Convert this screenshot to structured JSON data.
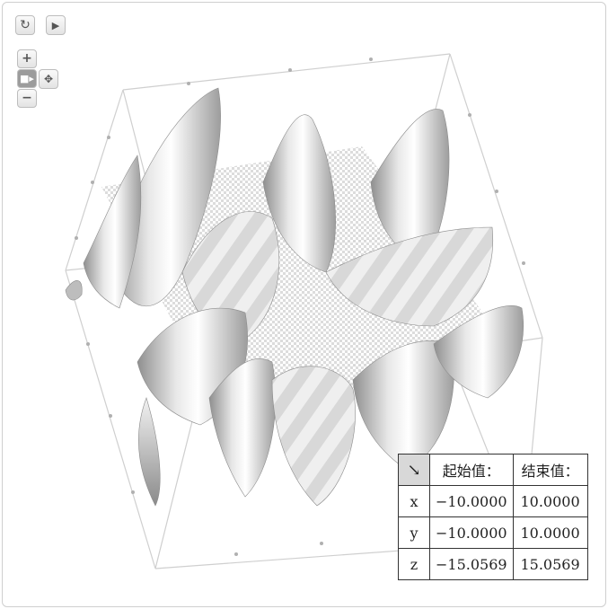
{
  "viewer": {
    "controls": {
      "reset_icon": "rotate-ccw-icon",
      "play_icon": "play-icon",
      "zoom_in_label": "+",
      "zoom_out_label": "−",
      "camera_icon": "camera-icon",
      "axes_icon": "axes-3d-icon"
    }
  },
  "range_table": {
    "corner_icon": "arrow-down-right-icon",
    "headers": [
      "起始值：",
      "结束值："
    ],
    "rows": [
      {
        "axis": "x",
        "start": "−10.0000",
        "end": "10.0000"
      },
      {
        "axis": "y",
        "start": "−10.0000",
        "end": "10.0000"
      },
      {
        "axis": "z",
        "start": "−15.0569",
        "end": "15.0569"
      }
    ]
  },
  "colors": {
    "surface_light": "#f4f4f4",
    "surface_dark": "#9a9a9a",
    "box_edge": "#cccccc"
  }
}
